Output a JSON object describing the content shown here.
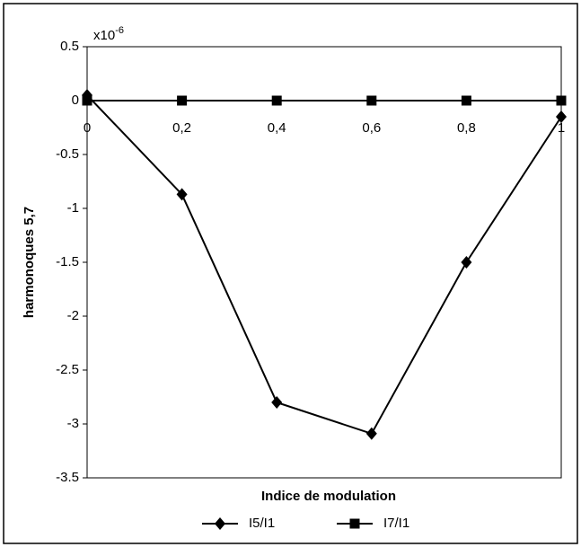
{
  "chart_data": {
    "type": "line",
    "y_multiplier_base": "x10",
    "y_multiplier_exponent": "-6",
    "ylabel": "harmonoques 5,7",
    "xlabel": "Indice de modulation",
    "x": [
      0,
      0.2,
      0.4,
      0.6,
      0.8,
      1
    ],
    "series": [
      {
        "name": "I5/I1",
        "color": "#000000",
        "marker": "diamond",
        "values": [
          0.05,
          -0.87,
          -2.8,
          -3.09,
          -1.5,
          -0.15
        ]
      },
      {
        "name": "I7/I1",
        "color": "#000000",
        "marker": "square",
        "values": [
          0,
          0,
          0,
          0,
          0,
          0
        ]
      }
    ],
    "xlim": [
      0,
      1
    ],
    "xticks": [
      0,
      {
        "value": 0.2,
        "label": "0,2"
      },
      {
        "value": 0.4,
        "label": "0,4"
      },
      {
        "value": 0.6,
        "label": "0,6"
      },
      {
        "value": 0.8,
        "label": "0,8"
      },
      1
    ],
    "ylim": [
      -3.5,
      0.5
    ],
    "yticks": [
      0.5,
      0,
      -0.5,
      -1,
      -1.5,
      -2,
      -2.5,
      -3,
      -3.5
    ],
    "legend": "bottom",
    "grid": false
  }
}
